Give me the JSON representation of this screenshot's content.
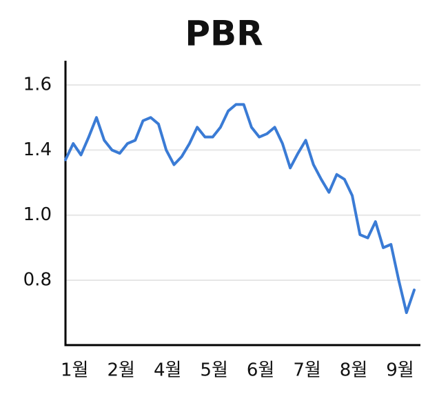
{
  "chart_data": {
    "type": "line",
    "title": "PBR",
    "categories": [
      null,
      "1월",
      null,
      null,
      null,
      null,
      null,
      "2월",
      null,
      null,
      null,
      null,
      null,
      "4월",
      null,
      null,
      null,
      null,
      null,
      "5월",
      null,
      null,
      null,
      null,
      null,
      "6월",
      null,
      null,
      null,
      null,
      null,
      "7월",
      null,
      null,
      null,
      null,
      null,
      "8월",
      null,
      null,
      null,
      null,
      null,
      "9월",
      null,
      null
    ],
    "series": [
      {
        "color": "#3a7bd5",
        "values": [
          1.34,
          1.42,
          1.37,
          1.44,
          1.5,
          1.43,
          1.4,
          1.38,
          1.42,
          1.43,
          1.49,
          1.5,
          1.48,
          1.4,
          1.31,
          1.36,
          1.42,
          1.47,
          1.44,
          1.44,
          1.47,
          1.52,
          1.54,
          1.54,
          1.47,
          1.44,
          1.45,
          1.47,
          1.42,
          1.29,
          1.38,
          1.43,
          1.31,
          1.22,
          1.14,
          1.25,
          1.22,
          1.12,
          0.94,
          0.93,
          0.98,
          0.9,
          0.91,
          0.8,
          0.7,
          0.77
        ]
      }
    ],
    "ylim": [
      0.6,
      1.675
    ],
    "yticks": [
      {
        "value": 0.8,
        "label": "0.8"
      },
      {
        "value": 1,
        "label": "1.0"
      },
      1.4,
      {
        "value": 1.6,
        "label": "1.6"
      }
    ],
    "grid": true
  }
}
